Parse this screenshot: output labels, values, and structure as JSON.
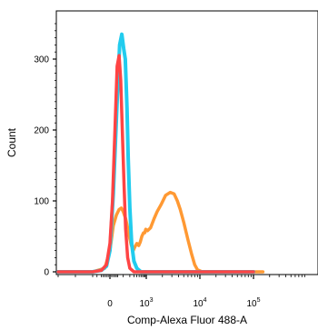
{
  "chart_data": {
    "type": "line",
    "title": "",
    "xlabel": "Comp-Alexa Fluor 488-A",
    "ylabel": "Count",
    "x_scale": "biexponential",
    "xlim": [
      -300,
      150000
    ],
    "ylim": [
      0,
      360
    ],
    "grid": false,
    "legend": "none",
    "x_ticks": [
      {
        "value": 0,
        "base": "0",
        "exp": ""
      },
      {
        "value": 1000,
        "base": "10",
        "exp": "3"
      },
      {
        "value": 10000,
        "base": "10",
        "exp": "4"
      },
      {
        "value": 100000,
        "base": "10",
        "exp": "5"
      }
    ],
    "y_ticks": [
      {
        "value": 0,
        "label": "0"
      },
      {
        "value": 100,
        "label": "100"
      },
      {
        "value": 200,
        "label": "200"
      },
      {
        "value": 300,
        "label": "300"
      }
    ],
    "series": [
      {
        "color": "#ff4444",
        "x": [
          -300,
          -100,
          -50,
          -20,
          0,
          15,
          30,
          45,
          60,
          75,
          90,
          110,
          130,
          160,
          200,
          300,
          1000,
          100000
        ],
        "y": [
          0,
          0,
          2,
          10,
          40,
          100,
          200,
          290,
          305,
          270,
          200,
          120,
          60,
          20,
          5,
          0,
          0,
          0
        ]
      },
      {
        "color": "#22ccee",
        "x": [
          -300,
          -100,
          -50,
          -20,
          0,
          20,
          45,
          65,
          85,
          105,
          125,
          150,
          170,
          200,
          240,
          300,
          400,
          600,
          1000,
          100000
        ],
        "y": [
          0,
          0,
          2,
          8,
          30,
          110,
          240,
          320,
          335,
          315,
          300,
          230,
          160,
          90,
          40,
          15,
          5,
          0,
          0,
          0
        ]
      },
      {
        "color": "#ff9933",
        "x": [
          -300,
          -100,
          -30,
          0,
          20,
          40,
          60,
          80,
          100,
          130,
          160,
          190,
          230,
          280,
          330,
          400,
          480,
          560,
          650,
          760,
          860,
          950,
          1050,
          1200,
          1400,
          1600,
          1900,
          2300,
          2800,
          3300,
          3800,
          4300,
          5000,
          6000,
          7000,
          8000,
          9000,
          11000,
          14000,
          20000,
          100000,
          150000
        ],
        "y": [
          0,
          0,
          5,
          30,
          65,
          80,
          88,
          90,
          85,
          75,
          62,
          50,
          38,
          30,
          35,
          40,
          37,
          42,
          50,
          55,
          55,
          60,
          58,
          62,
          75,
          85,
          95,
          108,
          112,
          110,
          100,
          88,
          70,
          45,
          25,
          10,
          3,
          0,
          0,
          0,
          0,
          0
        ]
      }
    ]
  }
}
